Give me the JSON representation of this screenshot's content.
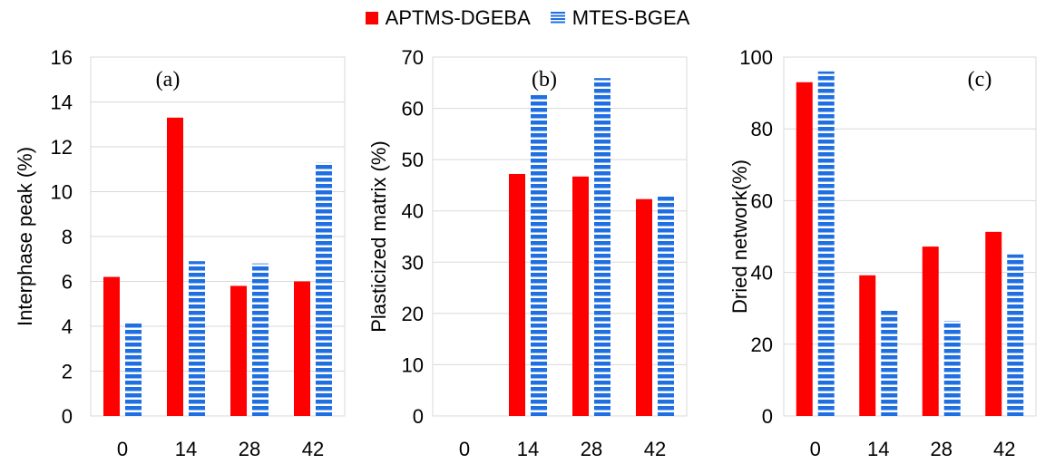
{
  "legend": {
    "series1": "APTMS-DGEBA",
    "series2": "MTES-BGEA"
  },
  "colors": {
    "series1": "#ff0000",
    "series2": "#1f6fe0",
    "grid": "#d9d9d9"
  },
  "chart_data": [
    {
      "type": "bar",
      "panel_label": "(a)",
      "ylabel": "Interphase peak (%)",
      "categories": [
        "0",
        "14",
        "28",
        "42"
      ],
      "ylim": [
        0,
        16
      ],
      "yticks": [
        0,
        2,
        4,
        6,
        8,
        10,
        12,
        14,
        16
      ],
      "grid": true,
      "series": [
        {
          "name": "APTMS-DGEBA",
          "values": [
            6.2,
            13.3,
            5.8,
            6.0
          ]
        },
        {
          "name": "MTES-BGEA",
          "values": [
            4.2,
            6.9,
            6.8,
            11.3
          ]
        }
      ]
    },
    {
      "type": "bar",
      "panel_label": "(b)",
      "ylabel": "Plasticized matrix (%)",
      "categories": [
        "0",
        "14",
        "28",
        "42"
      ],
      "ylim": [
        0,
        70
      ],
      "yticks": [
        0,
        10,
        20,
        30,
        40,
        50,
        60,
        70
      ],
      "grid": true,
      "series": [
        {
          "name": "APTMS-DGEBA",
          "values": [
            0,
            47.2,
            46.7,
            42.3
          ]
        },
        {
          "name": "MTES-BGEA",
          "values": [
            0,
            62.8,
            65.9,
            43.2
          ]
        }
      ]
    },
    {
      "type": "bar",
      "panel_label": "(c)",
      "ylabel": "Dried network(%)",
      "categories": [
        "0",
        "14",
        "28",
        "42"
      ],
      "ylim": [
        0,
        100
      ],
      "yticks": [
        0,
        20,
        40,
        60,
        80,
        100
      ],
      "grid": true,
      "series": [
        {
          "name": "APTMS-DGEBA",
          "values": [
            93,
            39.2,
            47.2,
            51.3
          ]
        },
        {
          "name": "MTES-BGEA",
          "values": [
            96,
            29.8,
            26.5,
            45
          ]
        }
      ]
    }
  ]
}
